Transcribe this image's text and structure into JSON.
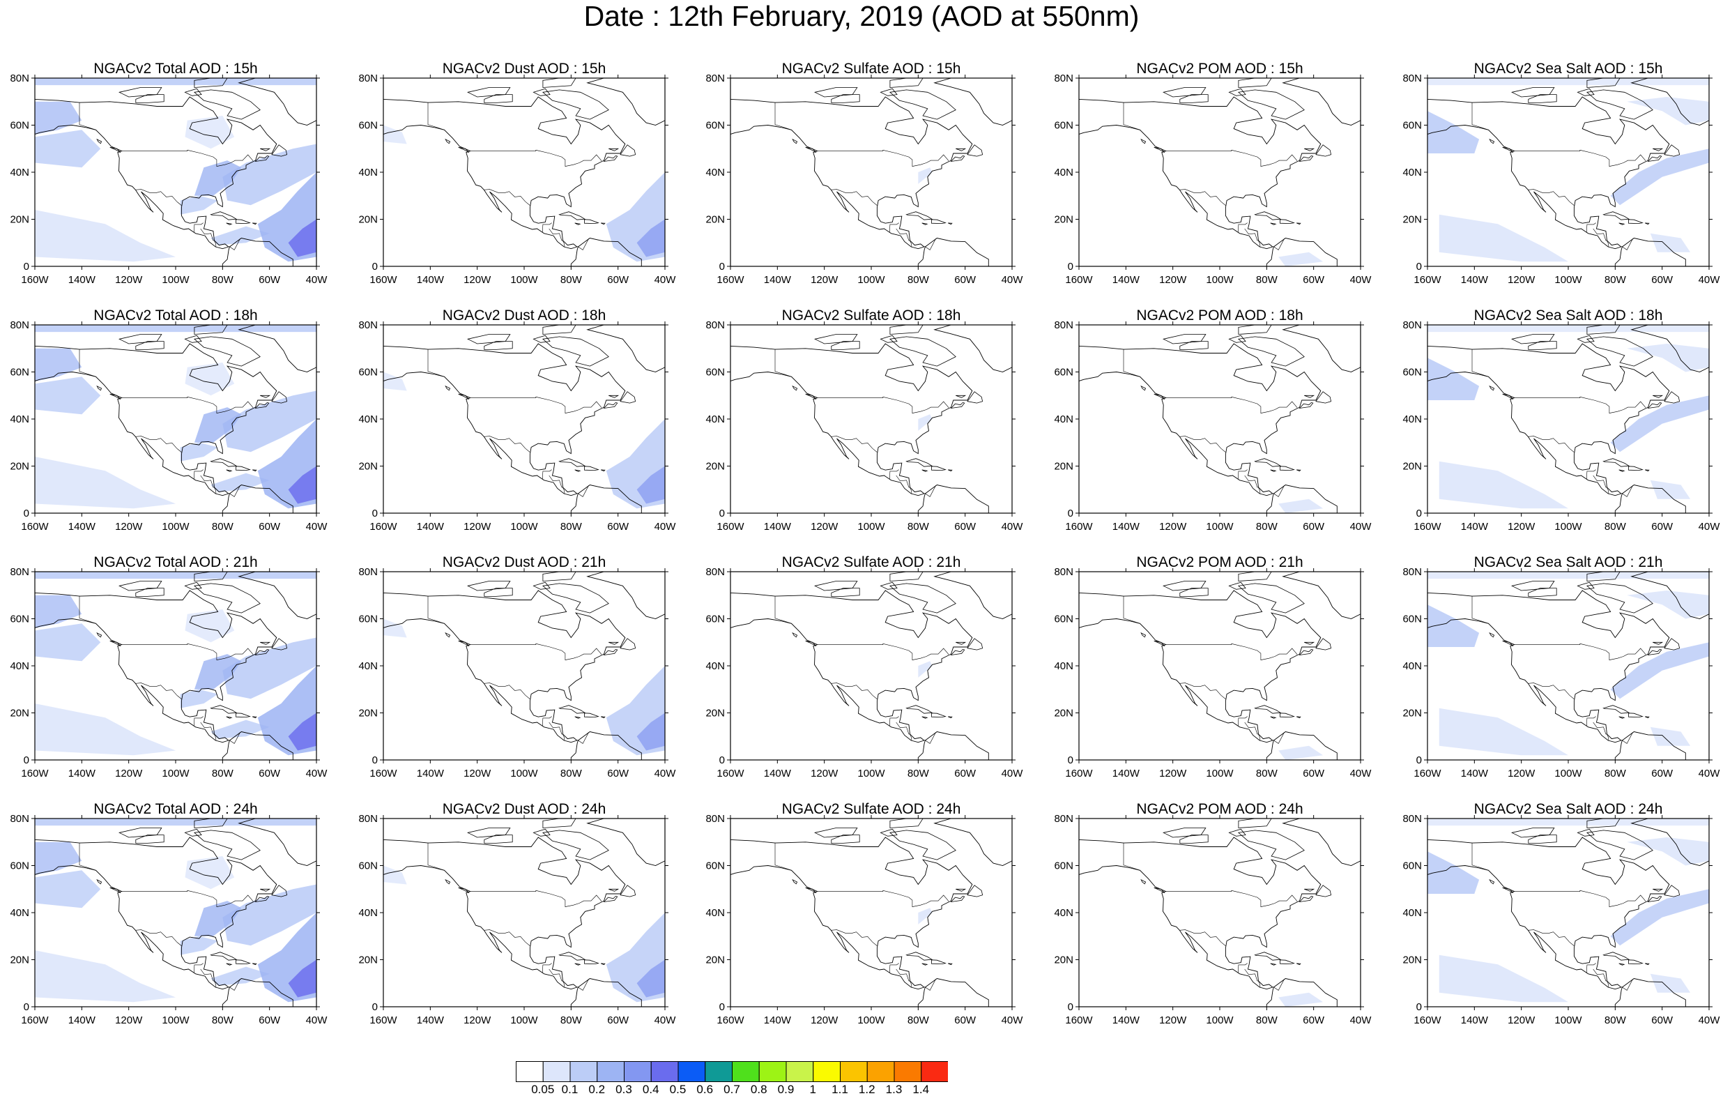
{
  "title": "Date : 12th February, 2019 (AOD at 550nm)",
  "panel_rows": [
    [
      "NGACv2 Total AOD : 15h",
      "NGACv2 Dust AOD : 15h",
      "NGACv2 Sulfate AOD : 15h",
      "NGACv2 POM AOD : 15h",
      "NGACv2 Sea Salt AOD : 15h"
    ],
    [
      "NGACv2 Total AOD : 18h",
      "NGACv2 Dust AOD : 18h",
      "NGACv2 Sulfate AOD : 18h",
      "NGACv2 POM AOD : 18h",
      "NGACv2 Sea Salt AOD : 18h"
    ],
    [
      "NGACv2 Total AOD : 21h",
      "NGACv2 Dust AOD : 21h",
      "NGACv2 Sulfate AOD : 21h",
      "NGACv2 POM AOD : 21h",
      "NGACv2 Sea Salt AOD : 21h"
    ],
    [
      "NGACv2 Total AOD : 24h",
      "NGACv2 Dust AOD : 24h",
      "NGACv2 Sulfate AOD : 24h",
      "NGACv2 POM AOD : 24h",
      "NGACv2 Sea Salt  AOD : 24h"
    ]
  ],
  "lat_ticks": [
    "0",
    "20N",
    "40N",
    "60N",
    "80N"
  ],
  "lon_ticks": [
    "160W",
    "140W",
    "120W",
    "100W",
    "80W",
    "60W",
    "40W"
  ],
  "map_extent": {
    "lon_min": -160,
    "lon_max": -40,
    "lat_min": 0,
    "lat_max": 80
  },
  "colorbar": {
    "levels": [
      "0.05",
      "0.1",
      "0.2",
      "0.3",
      "0.4",
      "0.5",
      "0.6",
      "0.7",
      "0.8",
      "0.9",
      "1",
      "1.1",
      "1.2",
      "1.3",
      "1.4"
    ],
    "colors": [
      "#ffffff",
      "#dde6fb",
      "#bccdf7",
      "#9db4f3",
      "#8397f1",
      "#6a6cee",
      "#0b5cf6",
      "#0f9a96",
      "#4fe01c",
      "#9df315",
      "#c9f34a",
      "#fafa00",
      "#fbc400",
      "#fba200",
      "#fa7a00",
      "#fa2a12"
    ]
  },
  "colors": {
    "land_outline": "#000000",
    "border": "#000000"
  }
}
